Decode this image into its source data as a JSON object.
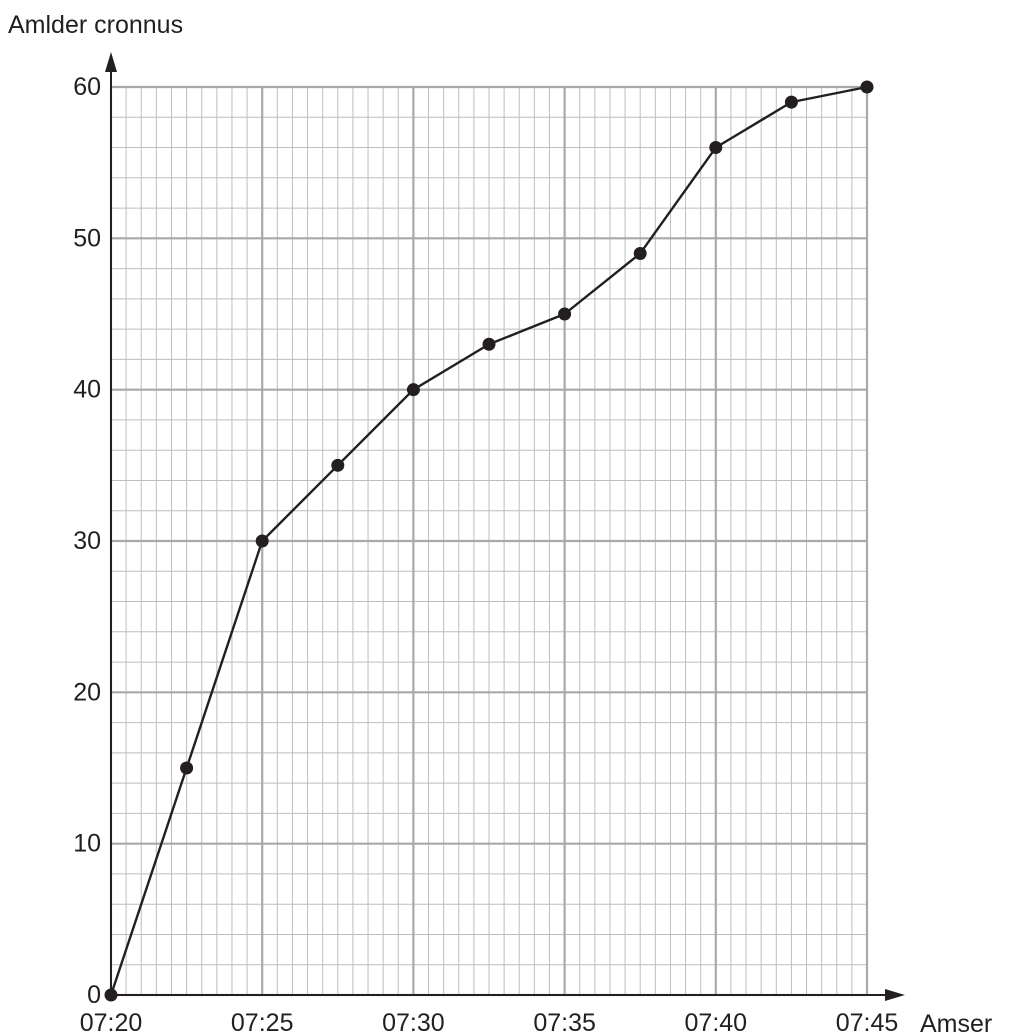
{
  "chart_data": {
    "type": "line",
    "title": "",
    "xlabel": "Amser",
    "ylabel": "Amlder cronnus",
    "x_tick_labels": [
      "07:20",
      "07:25",
      "07:30",
      "07:35",
      "07:40",
      "07:45"
    ],
    "y_tick_labels": [
      "0",
      "10",
      "20",
      "30",
      "40",
      "50",
      "60"
    ],
    "xlim": [
      "07:20",
      "07:45"
    ],
    "ylim": [
      0,
      60
    ],
    "grid": true,
    "x_minor_step_minutes": 0.5,
    "y_minor_step": 2,
    "x_major_step_minutes": 5,
    "y_major_step": 10,
    "series": [
      {
        "x": [
          "07:20",
          "07:22:30",
          "07:25",
          "07:27:30",
          "07:30",
          "07:32:30",
          "07:35",
          "07:37:30",
          "07:40",
          "07:42:30",
          "07:45"
        ],
        "y": [
          0,
          15,
          30,
          35,
          40,
          43,
          45,
          49,
          56,
          59,
          60
        ]
      }
    ],
    "colors": {
      "line": "#231f20",
      "marker": "#231f20",
      "grid_major": "#a7a9ac",
      "grid_minor": "#bcbec0",
      "axis": "#231f20"
    }
  }
}
